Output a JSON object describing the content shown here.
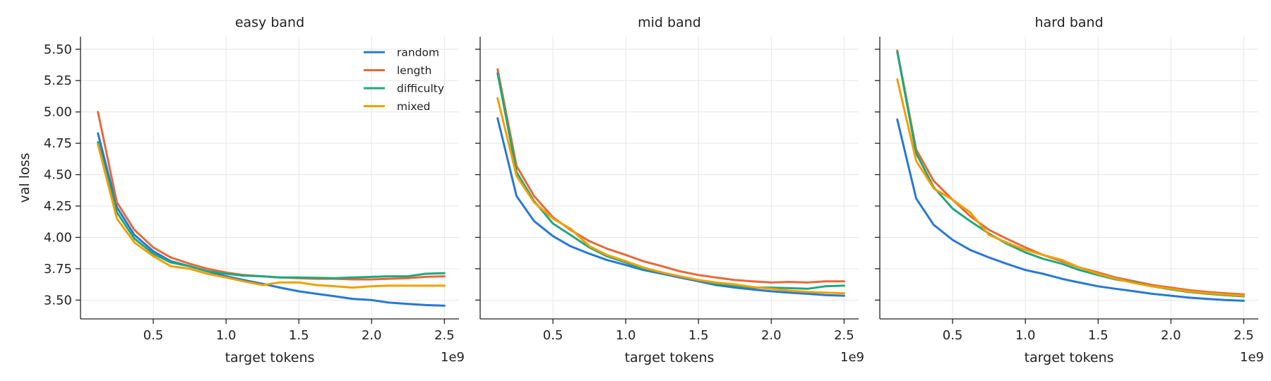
{
  "chart_data": [
    {
      "type": "line",
      "title": "easy band",
      "xlabel": "target tokens",
      "ylabel": "val loss",
      "x_offset_label": "1e9",
      "xlim": [
        0.0,
        2.6
      ],
      "ylim": [
        3.35,
        5.6
      ],
      "x_ticks": [
        0.5,
        1.0,
        1.5,
        2.0,
        2.5
      ],
      "x_tick_labels": [
        "0.5",
        "1.0",
        "1.5",
        "2.0",
        "2.5"
      ],
      "y_ticks": [
        3.5,
        3.75,
        4.0,
        4.25,
        4.5,
        4.75,
        5.0,
        5.25,
        5.5
      ],
      "y_tick_labels": [
        "3.50",
        "3.75",
        "4.00",
        "4.25",
        "4.50",
        "4.75",
        "5.00",
        "5.25",
        "5.50"
      ],
      "grid": true,
      "legend": "top-right",
      "x": [
        0.12,
        0.25,
        0.37,
        0.5,
        0.62,
        0.75,
        0.87,
        1.0,
        1.12,
        1.25,
        1.37,
        1.5,
        1.62,
        1.75,
        1.87,
        2.0,
        2.12,
        2.25,
        2.37,
        2.5
      ],
      "series": [
        {
          "name": "random",
          "color": "#2878d4",
          "values": [
            4.83,
            4.24,
            4.02,
            3.89,
            3.81,
            3.77,
            3.73,
            3.69,
            3.66,
            3.63,
            3.6,
            3.57,
            3.55,
            3.53,
            3.51,
            3.5,
            3.48,
            3.47,
            3.46,
            3.455
          ]
        },
        {
          "name": "length",
          "color": "#e8683a",
          "values": [
            5.0,
            4.28,
            4.06,
            3.92,
            3.84,
            3.79,
            3.75,
            3.72,
            3.7,
            3.69,
            3.68,
            3.675,
            3.67,
            3.67,
            3.665,
            3.665,
            3.67,
            3.675,
            3.685,
            3.69
          ]
        },
        {
          "name": "difficulty",
          "color": "#1fa87e",
          "values": [
            4.76,
            4.2,
            3.99,
            3.87,
            3.8,
            3.77,
            3.73,
            3.71,
            3.695,
            3.69,
            3.68,
            3.68,
            3.678,
            3.675,
            3.68,
            3.685,
            3.69,
            3.69,
            3.71,
            3.715
          ]
        },
        {
          "name": "mixed",
          "color": "#f0a000",
          "values": [
            4.74,
            4.15,
            3.96,
            3.85,
            3.77,
            3.75,
            3.71,
            3.68,
            3.65,
            3.62,
            3.64,
            3.64,
            3.62,
            3.61,
            3.6,
            3.61,
            3.615,
            3.615,
            3.615,
            3.615
          ]
        }
      ]
    },
    {
      "type": "line",
      "title": "mid band",
      "xlabel": "target tokens",
      "ylabel": "",
      "x_offset_label": "1e9",
      "xlim": [
        0.0,
        2.6
      ],
      "ylim": [
        3.35,
        5.6
      ],
      "x_ticks": [
        0.5,
        1.0,
        1.5,
        2.0,
        2.5
      ],
      "x_tick_labels": [
        "0.5",
        "1.0",
        "1.5",
        "2.0",
        "2.5"
      ],
      "y_ticks": [
        3.5,
        3.75,
        4.0,
        4.25,
        4.5,
        4.75,
        5.0,
        5.25,
        5.5
      ],
      "grid": true,
      "x": [
        0.12,
        0.25,
        0.37,
        0.5,
        0.62,
        0.75,
        0.87,
        1.0,
        1.12,
        1.25,
        1.37,
        1.5,
        1.62,
        1.75,
        1.87,
        2.0,
        2.12,
        2.25,
        2.37,
        2.5
      ],
      "series": [
        {
          "name": "random",
          "color": "#2878d4",
          "values": [
            4.95,
            4.33,
            4.13,
            4.01,
            3.93,
            3.87,
            3.82,
            3.78,
            3.74,
            3.71,
            3.68,
            3.65,
            3.62,
            3.6,
            3.585,
            3.57,
            3.56,
            3.55,
            3.54,
            3.535
          ]
        },
        {
          "name": "length",
          "color": "#e8683a",
          "values": [
            5.34,
            4.57,
            4.33,
            4.16,
            4.06,
            3.97,
            3.91,
            3.86,
            3.81,
            3.77,
            3.73,
            3.7,
            3.68,
            3.66,
            3.65,
            3.64,
            3.645,
            3.64,
            3.65,
            3.65
          ]
        },
        {
          "name": "difficulty",
          "color": "#1fa87e",
          "values": [
            5.31,
            4.52,
            4.29,
            4.11,
            4.02,
            3.92,
            3.85,
            3.8,
            3.75,
            3.72,
            3.69,
            3.66,
            3.63,
            3.615,
            3.6,
            3.6,
            3.595,
            3.59,
            3.61,
            3.615
          ]
        },
        {
          "name": "mixed",
          "color": "#f0a000",
          "values": [
            5.11,
            4.49,
            4.28,
            4.15,
            4.07,
            3.93,
            3.86,
            3.81,
            3.76,
            3.72,
            3.69,
            3.66,
            3.64,
            3.625,
            3.605,
            3.59,
            3.575,
            3.565,
            3.56,
            3.555
          ]
        }
      ]
    },
    {
      "type": "line",
      "title": "hard band",
      "xlabel": "target tokens",
      "ylabel": "",
      "x_offset_label": "1e9",
      "xlim": [
        0.0,
        2.6
      ],
      "ylim": [
        3.35,
        5.6
      ],
      "x_ticks": [
        0.5,
        1.0,
        1.5,
        2.0,
        2.5
      ],
      "x_tick_labels": [
        "0.5",
        "1.0",
        "1.5",
        "2.0",
        "2.5"
      ],
      "y_ticks": [
        3.5,
        3.75,
        4.0,
        4.25,
        4.5,
        4.75,
        5.0,
        5.25,
        5.5
      ],
      "grid": true,
      "x": [
        0.12,
        0.25,
        0.37,
        0.5,
        0.62,
        0.75,
        0.87,
        1.0,
        1.12,
        1.25,
        1.37,
        1.5,
        1.62,
        1.75,
        1.87,
        2.0,
        2.12,
        2.25,
        2.37,
        2.5
      ],
      "series": [
        {
          "name": "random",
          "color": "#2878d4",
          "values": [
            4.94,
            4.31,
            4.1,
            3.98,
            3.9,
            3.84,
            3.79,
            3.74,
            3.71,
            3.67,
            3.64,
            3.61,
            3.59,
            3.57,
            3.55,
            3.535,
            3.52,
            3.51,
            3.5,
            3.495
          ]
        },
        {
          "name": "length",
          "color": "#e8683a",
          "values": [
            5.49,
            4.7,
            4.45,
            4.3,
            4.17,
            4.06,
            3.99,
            3.92,
            3.86,
            3.81,
            3.76,
            3.72,
            3.68,
            3.65,
            3.62,
            3.6,
            3.58,
            3.565,
            3.555,
            3.545
          ]
        },
        {
          "name": "difficulty",
          "color": "#1fa87e",
          "values": [
            5.48,
            4.67,
            4.4,
            4.23,
            4.13,
            4.03,
            3.95,
            3.88,
            3.83,
            3.79,
            3.74,
            3.7,
            3.665,
            3.64,
            3.61,
            3.585,
            3.565,
            3.55,
            3.54,
            3.53
          ]
        },
        {
          "name": "mixed",
          "color": "#f0a000",
          "values": [
            5.26,
            4.61,
            4.39,
            4.3,
            4.2,
            4.02,
            3.96,
            3.9,
            3.86,
            3.82,
            3.76,
            3.71,
            3.67,
            3.635,
            3.61,
            3.59,
            3.57,
            3.555,
            3.545,
            3.535
          ]
        }
      ]
    }
  ]
}
